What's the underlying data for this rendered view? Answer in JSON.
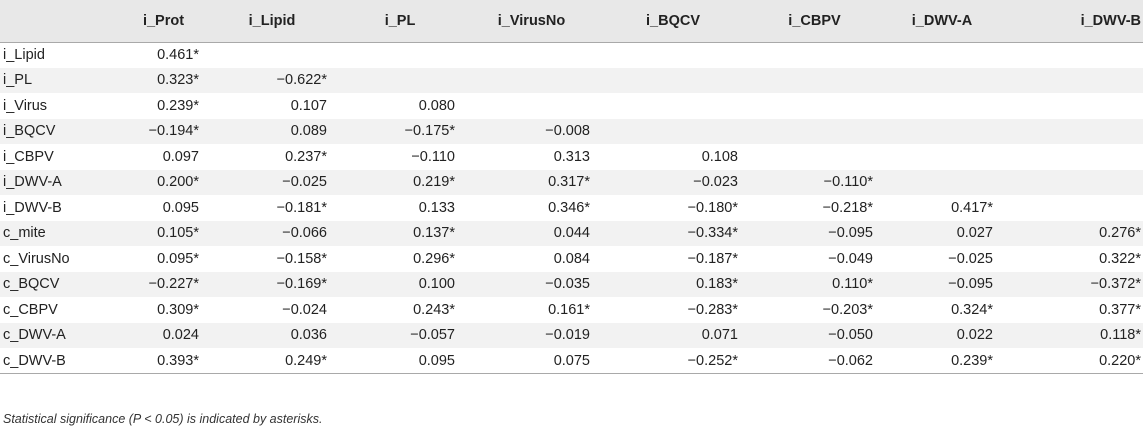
{
  "table": {
    "columns": [
      "i_Prot",
      "i_Lipid",
      "i_PL",
      "i_VirusNo",
      "i_BQCV",
      "i_CBPV",
      "i_DWV-A",
      "i_DWV-B"
    ],
    "rows": [
      {
        "label": "i_Lipid",
        "values": [
          "0.461*",
          "",
          "",
          "",
          "",
          "",
          "",
          ""
        ]
      },
      {
        "label": "i_PL",
        "values": [
          "0.323*",
          "−0.622*",
          "",
          "",
          "",
          "",
          "",
          ""
        ]
      },
      {
        "label": "i_Virus",
        "values": [
          "0.239*",
          "0.107",
          "0.080",
          "",
          "",
          "",
          "",
          ""
        ]
      },
      {
        "label": "i_BQCV",
        "values": [
          "−0.194*",
          "0.089",
          "−0.175*",
          "−0.008",
          "",
          "",
          "",
          ""
        ]
      },
      {
        "label": "i_CBPV",
        "values": [
          "0.097",
          "0.237*",
          "−0.110",
          "0.313",
          "0.108",
          "",
          "",
          ""
        ]
      },
      {
        "label": "i_DWV-A",
        "values": [
          "0.200*",
          "−0.025",
          "0.219*",
          "0.317*",
          "−0.023",
          "−0.110*",
          "",
          ""
        ]
      },
      {
        "label": "i_DWV-B",
        "values": [
          "0.095",
          "−0.181*",
          "0.133",
          "0.346*",
          "−0.180*",
          "−0.218*",
          "0.417*",
          ""
        ]
      },
      {
        "label": "c_mite",
        "values": [
          "0.105*",
          "−0.066",
          "0.137*",
          "0.044",
          "−0.334*",
          "−0.095",
          "0.027",
          "0.276*"
        ]
      },
      {
        "label": "c_VirusNo",
        "values": [
          "0.095*",
          "−0.158*",
          "0.296*",
          "0.084",
          "−0.187*",
          "−0.049",
          "−0.025",
          "0.322*"
        ]
      },
      {
        "label": "c_BQCV",
        "values": [
          "−0.227*",
          "−0.169*",
          "0.100",
          "−0.035",
          "0.183*",
          "0.110*",
          "−0.095",
          "−0.372*"
        ]
      },
      {
        "label": "c_CBPV",
        "values": [
          "0.309*",
          "−0.024",
          "0.243*",
          "0.161*",
          "−0.283*",
          "−0.203*",
          "0.324*",
          "0.377*"
        ]
      },
      {
        "label": "c_DWV-A",
        "values": [
          "0.024",
          "0.036",
          "−0.057",
          "−0.019",
          "0.071",
          "−0.050",
          "0.022",
          "0.118*"
        ]
      },
      {
        "label": "c_DWV-B",
        "values": [
          "0.393*",
          "0.249*",
          "0.095",
          "0.075",
          "−0.252*",
          "−0.062",
          "0.239*",
          "0.220*"
        ]
      }
    ]
  },
  "footnote": "Statistical significance (P < 0.05) is indicated by asterisks.",
  "colors": {
    "header_bg": "#e8e8e8",
    "stripe_bg": "#f2f2f2",
    "text": "#222222"
  }
}
